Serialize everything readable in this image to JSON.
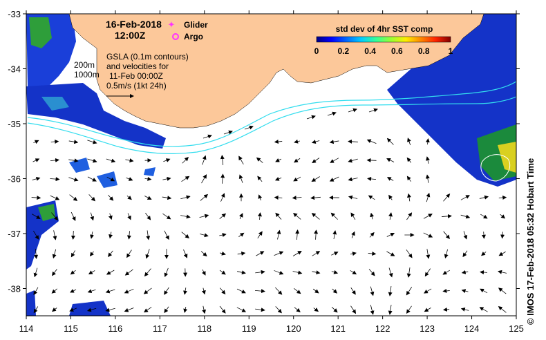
{
  "title": {
    "date": "16-Feb-2018",
    "time": "12:00Z"
  },
  "legend": {
    "glider": "Glider",
    "argo": "Argo",
    "glider_color": "#ff33ff",
    "argo_color": "#ff33ff"
  },
  "notes": {
    "line1": "GSLA (0.1m contours)",
    "line2": "and velocities for",
    "line3": "11-Feb 00:00Z",
    "line4": "0.5m/s (1kt 24h)",
    "isobath_200": "200m",
    "isobath_1000": "1000m"
  },
  "colorbar": {
    "title": "std dev of 4hr SST comp",
    "ticks": [
      "0",
      "0.2",
      "0.4",
      "0.6",
      "0.8",
      "1"
    ],
    "colors": [
      "#00007f",
      "#0000ff",
      "#0066ff",
      "#00ccff",
      "#33ff99",
      "#99ff33",
      "#ffee00",
      "#ff8800",
      "#ff2200",
      "#7f0000"
    ]
  },
  "axes": {
    "x_ticks": [
      "114",
      "115",
      "116",
      "117",
      "118",
      "119",
      "120",
      "121",
      "122",
      "123",
      "124",
      "125"
    ],
    "y_ticks": [
      "-33",
      "-34",
      "-35",
      "-36",
      "-37",
      "-38"
    ]
  },
  "colors": {
    "land": "#fcc89a",
    "isobath": "#33ddee",
    "arrow": "#000000"
  },
  "credit": "©  IMOS 17-Feb-2018 05:32 Hobart Time"
}
